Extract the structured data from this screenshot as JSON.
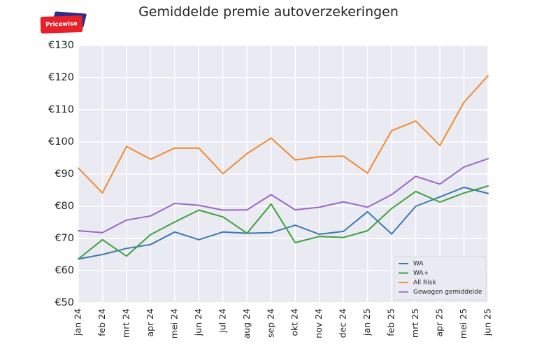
{
  "logo": {
    "text": "Pricewise",
    "color": "#e8202a"
  },
  "chart_data": {
    "type": "line",
    "title": "Gemiddelde premie autoverzekeringen",
    "xlabel": "",
    "ylabel": "",
    "categories": [
      "jan 24",
      "feb 24",
      "mrt 24",
      "apr 24",
      "mei 24",
      "jun 24",
      "jul 24",
      "aug 24",
      "sep 24",
      "okt 24",
      "nov 24",
      "dec 24",
      "jan 25",
      "feb 25",
      "mrt 25",
      "apr 25",
      "mei 25",
      "jun 25"
    ],
    "ylim": [
      50,
      130
    ],
    "yticks": [
      50,
      60,
      70,
      80,
      90,
      100,
      110,
      120,
      130
    ],
    "ytick_labels": [
      "€50",
      "€60",
      "€70",
      "€80",
      "€90",
      "€100",
      "€110",
      "€120",
      "€130"
    ],
    "grid": true,
    "legend_position": "bottom-right",
    "series": [
      {
        "name": "WA",
        "color": "#3a78b0",
        "values": [
          63.6,
          65.0,
          66.9,
          68.1,
          72.0,
          69.6,
          72.0,
          71.6,
          71.8,
          74.1,
          71.3,
          72.2,
          78.3,
          71.4,
          80.0,
          82.9,
          85.9,
          84.0
        ]
      },
      {
        "name": "WA+",
        "color": "#3da13d",
        "values": [
          63.6,
          69.6,
          64.5,
          71.2,
          75.1,
          78.8,
          76.7,
          71.6,
          80.7,
          68.7,
          70.6,
          70.3,
          72.4,
          79.3,
          84.6,
          81.3,
          84.1,
          86.3
        ]
      },
      {
        "name": "All Risk",
        "color": "#f28a30",
        "values": [
          91.9,
          84.1,
          98.6,
          94.6,
          98.1,
          98.1,
          90.1,
          96.4,
          101.2,
          94.4,
          95.4,
          95.6,
          90.3,
          103.5,
          106.5,
          98.9,
          112.3,
          120.6
        ]
      },
      {
        "name": "Gewogen gemiddelde",
        "color": "#9a68c4",
        "values": [
          72.4,
          71.8,
          75.7,
          77.0,
          80.9,
          80.3,
          78.8,
          78.9,
          83.6,
          78.9,
          79.7,
          81.4,
          79.7,
          83.6,
          89.3,
          86.9,
          92.2,
          94.8
        ]
      }
    ]
  }
}
